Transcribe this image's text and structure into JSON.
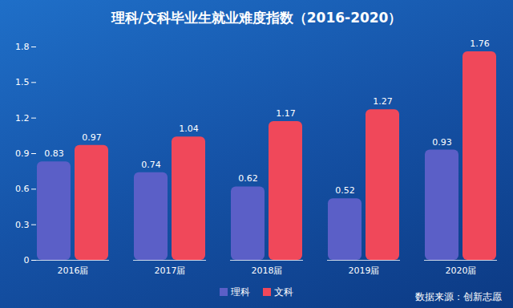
{
  "chart_data": {
    "type": "bar",
    "title": "理科/文科毕业生就业难度指数（2016-2020）",
    "categories": [
      "2016届",
      "2017届",
      "2018届",
      "2019届",
      "2020届"
    ],
    "series": [
      {
        "name": "理科",
        "color": "#5b5fc7",
        "values": [
          0.83,
          0.74,
          0.62,
          0.52,
          0.93
        ]
      },
      {
        "name": "文科",
        "color": "#f0485a",
        "values": [
          0.97,
          1.04,
          1.17,
          1.27,
          1.76
        ]
      }
    ],
    "ylim": [
      0,
      1.8
    ],
    "yticks": [
      0,
      0.3,
      0.6,
      0.9,
      1.2,
      1.5,
      1.8
    ],
    "grid": false,
    "data_labels": true,
    "legend": "bottom",
    "source": "数据来源：创新志愿"
  }
}
